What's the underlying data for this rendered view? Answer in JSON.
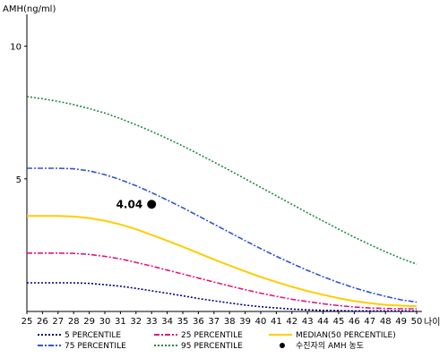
{
  "chart_data": {
    "type": "line",
    "ylabel": "AMH(ng/ml)",
    "xlabel": "나이",
    "xlim": [
      25,
      50
    ],
    "ylim": [
      0,
      11
    ],
    "x": [
      25,
      26,
      27,
      28,
      29,
      30,
      31,
      32,
      33,
      34,
      35,
      36,
      37,
      38,
      39,
      40,
      41,
      42,
      43,
      44,
      45,
      46,
      47,
      48,
      49,
      50
    ],
    "y_ticks": [
      5,
      10
    ],
    "series": [
      {
        "name": "5 PERCENTILE",
        "color": "#00007f",
        "dash": "2,2",
        "values": [
          1.08,
          1.08,
          1.08,
          1.08,
          1.06,
          1.01,
          0.95,
          0.87,
          0.78,
          0.69,
          0.59,
          0.49,
          0.4,
          0.32,
          0.24,
          0.18,
          0.13,
          0.09,
          0.06,
          0.04,
          0.03,
          0.02,
          0.02,
          0.02,
          0.02,
          0.02
        ]
      },
      {
        "name": "25 PERCENTILE",
        "color": "#e0197f",
        "dash": "6,2,2,2",
        "values": [
          2.2,
          2.2,
          2.2,
          2.19,
          2.15,
          2.08,
          1.98,
          1.85,
          1.71,
          1.56,
          1.41,
          1.26,
          1.11,
          0.96,
          0.82,
          0.69,
          0.57,
          0.46,
          0.37,
          0.29,
          0.22,
          0.17,
          0.13,
          0.11,
          0.1,
          0.1
        ]
      },
      {
        "name": "MEDIAN(50 PERCENTILE)",
        "color": "#ffcc00",
        "dash": "",
        "values": [
          3.6,
          3.6,
          3.6,
          3.58,
          3.52,
          3.42,
          3.28,
          3.1,
          2.89,
          2.67,
          2.44,
          2.2,
          1.96,
          1.73,
          1.51,
          1.3,
          1.11,
          0.93,
          0.77,
          0.63,
          0.5,
          0.39,
          0.31,
          0.25,
          0.22,
          0.2
        ]
      },
      {
        "name": "75 PERCENTILE",
        "color": "#3355cc",
        "dash": "6,2,2,2",
        "values": [
          5.4,
          5.4,
          5.4,
          5.38,
          5.3,
          5.16,
          4.97,
          4.74,
          4.48,
          4.2,
          3.91,
          3.6,
          3.29,
          2.98,
          2.67,
          2.37,
          2.08,
          1.81,
          1.55,
          1.31,
          1.09,
          0.89,
          0.72,
          0.57,
          0.44,
          0.35
        ]
      },
      {
        "name": "95 PERCENTILE",
        "color": "#228844",
        "dash": "2,2",
        "values": [
          8.1,
          8.02,
          7.92,
          7.8,
          7.65,
          7.48,
          7.27,
          7.04,
          6.79,
          6.52,
          6.24,
          5.94,
          5.63,
          5.32,
          5.0,
          4.68,
          4.36,
          4.04,
          3.72,
          3.41,
          3.1,
          2.8,
          2.52,
          2.25,
          2.0,
          1.78
        ]
      }
    ],
    "point": {
      "name": "수진자의 AMH 농도",
      "x": 33,
      "y": 4.04,
      "label": "4.04",
      "color": "#000000"
    },
    "legend_position": "bottom",
    "grid": false
  }
}
